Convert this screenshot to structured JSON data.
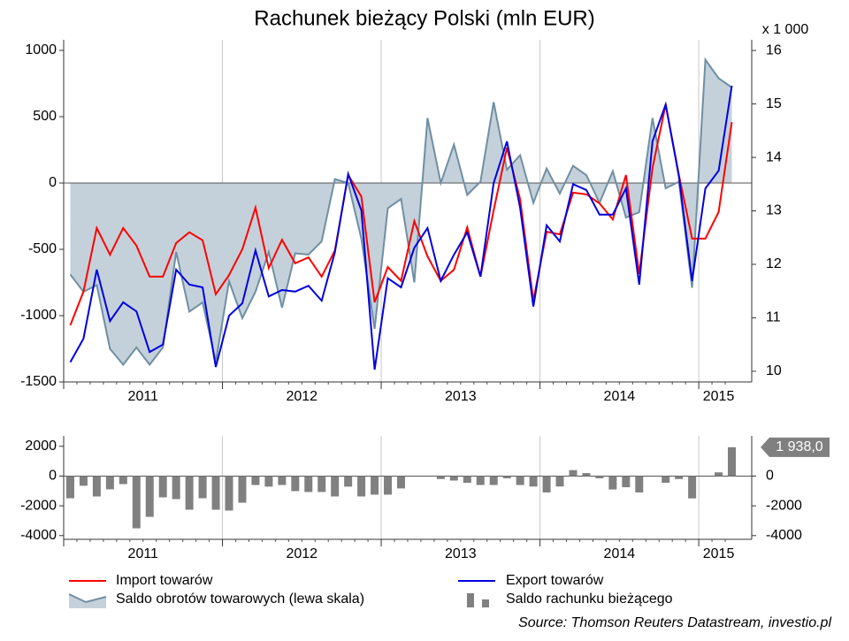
{
  "chart_data": [
    {
      "type": "line",
      "title": "Rachunek bieżący Polski (mln EUR)",
      "y2label": "x 1 000",
      "categories": [
        "2011",
        null,
        null,
        null,
        null,
        null,
        null,
        null,
        null,
        null,
        null,
        null,
        "2012",
        null,
        null,
        null,
        null,
        null,
        null,
        null,
        null,
        null,
        null,
        null,
        "2013",
        null,
        null,
        null,
        null,
        null,
        null,
        null,
        null,
        null,
        null,
        null,
        "2014",
        null,
        null,
        null,
        null,
        null,
        null,
        null,
        null,
        null,
        null,
        null,
        "2015",
        null,
        null
      ],
      "ylim": [
        -1500,
        1080
      ],
      "yticks": [
        -1500,
        -1000,
        -500,
        0,
        500,
        1000
      ],
      "y2lim": [
        9.8,
        16.2
      ],
      "y2ticks": [
        10,
        11,
        12,
        13,
        14,
        15,
        16
      ],
      "grid": true,
      "series": [
        {
          "name": "Saldo obrotów towarowych (lewa skala)",
          "style": "area",
          "axis": "y",
          "color": "#6f8fa3",
          "fill": "#c5d1da",
          "values": [
            -690,
            -820,
            -770,
            -1250,
            -1370,
            -1240,
            -1370,
            -1240,
            -520,
            -970,
            -900,
            -1350,
            -740,
            -1020,
            -820,
            -520,
            -940,
            -530,
            -540,
            -440,
            30,
            0,
            -420,
            -1100,
            -190,
            -120,
            -750,
            490,
            0,
            290,
            -90,
            10,
            610,
            100,
            210,
            -150,
            110,
            -80,
            130,
            60,
            -150,
            90,
            -260,
            -220,
            490,
            -40,
            10,
            -790,
            930,
            790,
            720
          ]
        },
        {
          "name": "Import towarów",
          "style": "line",
          "axis": "y2",
          "color": "#ff0000",
          "values": [
            10.86,
            11.49,
            12.68,
            12.18,
            12.68,
            12.35,
            11.77,
            11.77,
            12.4,
            12.6,
            12.45,
            11.44,
            11.8,
            12.28,
            13.06,
            11.93,
            12.46,
            12.02,
            12.13,
            11.77,
            12.26,
            13.67,
            13.27,
            11.29,
            11.95,
            11.69,
            12.81,
            12.15,
            11.69,
            11.9,
            12.69,
            11.77,
            13.01,
            14.18,
            13.22,
            11.32,
            12.61,
            12.56,
            13.34,
            13.31,
            13.14,
            12.84,
            13.67,
            11.82,
            13.8,
            14.99,
            13.67,
            12.48,
            12.48,
            12.98,
            14.66
          ]
        },
        {
          "name": "Export towarów",
          "style": "line",
          "axis": "y2",
          "color": "#0000e0",
          "values": [
            10.17,
            10.61,
            11.9,
            10.94,
            11.29,
            11.12,
            10.36,
            10.5,
            11.9,
            11.62,
            11.57,
            10.08,
            11.04,
            11.27,
            12.26,
            11.4,
            11.52,
            11.49,
            11.6,
            11.32,
            12.23,
            13.69,
            13.01,
            10.03,
            11.74,
            11.57,
            12.31,
            12.68,
            11.69,
            12.18,
            12.6,
            11.77,
            13.52,
            14.3,
            13.06,
            11.21,
            12.73,
            12.43,
            13.5,
            13.39,
            12.93,
            12.93,
            13.42,
            11.62,
            14.3,
            14.99,
            13.64,
            11.69,
            13.42,
            13.75,
            15.34
          ]
        }
      ]
    },
    {
      "type": "bar",
      "categories": [
        "2011",
        null,
        null,
        null,
        null,
        null,
        null,
        null,
        null,
        null,
        null,
        null,
        "2012",
        null,
        null,
        null,
        null,
        null,
        null,
        null,
        null,
        null,
        null,
        null,
        "2013",
        null,
        null,
        null,
        null,
        null,
        null,
        null,
        null,
        null,
        null,
        null,
        "2014",
        null,
        null,
        null,
        null,
        null,
        null,
        null,
        null,
        null,
        null,
        null,
        "2015",
        null,
        null
      ],
      "ylim": [
        -4250,
        2700
      ],
      "yticks": [
        -4000,
        -2000,
        0,
        2000
      ],
      "y2lim": [
        -4250,
        2700
      ],
      "y2ticks": [
        -4000,
        -2000,
        0
      ],
      "grid": true,
      "series": [
        {
          "name": "Saldo rachunku bieżącego",
          "color": "#808080",
          "values": [
            -1490,
            -650,
            -1370,
            -890,
            -540,
            -3510,
            -2740,
            -1430,
            -1550,
            -2260,
            -1490,
            -2260,
            -2320,
            -1790,
            -600,
            -710,
            -600,
            -1010,
            -1070,
            -1070,
            -1370,
            -710,
            -1370,
            -1250,
            -1250,
            -830,
            0,
            0,
            -200,
            -300,
            -450,
            -600,
            -600,
            -150,
            -600,
            -700,
            -1100,
            -700,
            400,
            200,
            -150,
            -900,
            -750,
            -1100,
            0,
            -450,
            -200,
            -1500,
            0,
            250,
            1938
          ],
          "value_labels": [
            null,
            null,
            null,
            null,
            null,
            null,
            null,
            null,
            null,
            null,
            null,
            null,
            null,
            null,
            null,
            null,
            null,
            null,
            null,
            null,
            null,
            null,
            null,
            null,
            null,
            null,
            null,
            null,
            null,
            null,
            null,
            null,
            null,
            null,
            null,
            null,
            null,
            null,
            null,
            null,
            null,
            null,
            null,
            null,
            null,
            null,
            null,
            null,
            null,
            null,
            "1 938,0"
          ]
        }
      ]
    }
  ],
  "source": "Source: Thomson Reuters Datastream, investio.pl"
}
